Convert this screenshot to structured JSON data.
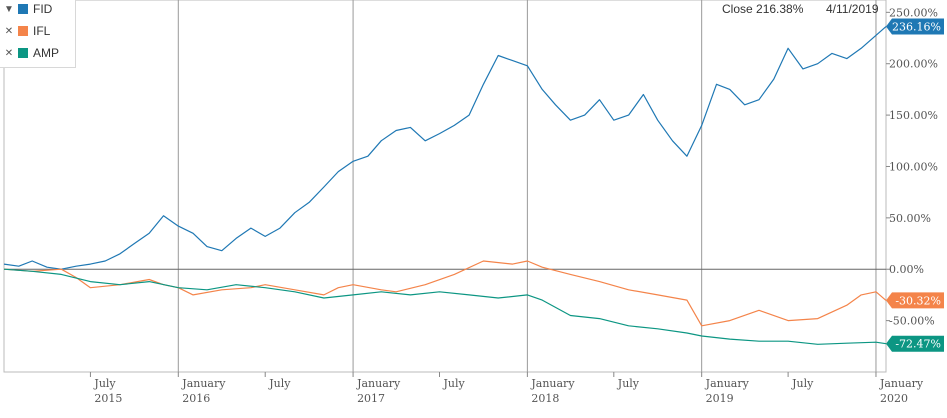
{
  "readout": {
    "close_label": "Close 216.38%",
    "date_label": "4/11/2019"
  },
  "colors": {
    "FID": "#1f78b4",
    "IFL": "#f4844a",
    "AMP": "#0c9683",
    "grid": "#999999",
    "zero": "#666666"
  },
  "chart_data": {
    "type": "line",
    "title": "",
    "xlabel": "",
    "ylabel": "",
    "x_range": [
      "2015-01-01",
      "2020-01-22"
    ],
    "ylim": [
      -100,
      262
    ],
    "y_ticks": [
      250,
      200,
      150,
      100,
      50,
      0,
      -50
    ],
    "y_tick_labels": [
      "250.00%",
      "200.00%",
      "150.00%",
      "100.00%",
      "50.00%",
      "0.00%",
      "-50.00%"
    ],
    "x_ticks": [
      {
        "date": "2015-07-01",
        "month": "July",
        "year": "2015"
      },
      {
        "date": "2016-01-01",
        "month": "January",
        "year": "2016"
      },
      {
        "date": "2016-07-01",
        "month": "July",
        "year": ""
      },
      {
        "date": "2017-01-01",
        "month": "January",
        "year": "2017"
      },
      {
        "date": "2017-07-01",
        "month": "July",
        "year": ""
      },
      {
        "date": "2018-01-01",
        "month": "January",
        "year": "2018"
      },
      {
        "date": "2018-07-01",
        "month": "July",
        "year": ""
      },
      {
        "date": "2019-01-01",
        "month": "January",
        "year": "2019"
      },
      {
        "date": "2019-07-01",
        "month": "July",
        "year": ""
      },
      {
        "date": "2020-01-01",
        "month": "January",
        "year": "2020"
      }
    ],
    "gridlines_x": [
      "2016-01-01",
      "2017-01-01",
      "2018-01-01",
      "2019-01-01",
      "2020-01-01"
    ],
    "legend_position": "top-left",
    "series": [
      {
        "name": "FID",
        "last_label": "236.16%",
        "points": [
          [
            "2015-01-01",
            5
          ],
          [
            "2015-02-01",
            3
          ],
          [
            "2015-03-01",
            8
          ],
          [
            "2015-04-01",
            2
          ],
          [
            "2015-05-01",
            0
          ],
          [
            "2015-06-01",
            3
          ],
          [
            "2015-07-01",
            5
          ],
          [
            "2015-08-01",
            8
          ],
          [
            "2015-09-01",
            15
          ],
          [
            "2015-10-01",
            25
          ],
          [
            "2015-11-01",
            35
          ],
          [
            "2015-12-01",
            52
          ],
          [
            "2016-01-01",
            42
          ],
          [
            "2016-02-01",
            35
          ],
          [
            "2016-03-01",
            22
          ],
          [
            "2016-04-01",
            18
          ],
          [
            "2016-05-01",
            30
          ],
          [
            "2016-06-01",
            40
          ],
          [
            "2016-07-01",
            32
          ],
          [
            "2016-08-01",
            40
          ],
          [
            "2016-09-01",
            55
          ],
          [
            "2016-10-01",
            65
          ],
          [
            "2016-11-01",
            80
          ],
          [
            "2016-12-01",
            95
          ],
          [
            "2017-01-01",
            105
          ],
          [
            "2017-02-01",
            110
          ],
          [
            "2017-03-01",
            125
          ],
          [
            "2017-04-01",
            135
          ],
          [
            "2017-05-01",
            138
          ],
          [
            "2017-06-01",
            125
          ],
          [
            "2017-07-01",
            132
          ],
          [
            "2017-08-01",
            140
          ],
          [
            "2017-09-01",
            150
          ],
          [
            "2017-10-01",
            180
          ],
          [
            "2017-11-01",
            208
          ],
          [
            "2017-12-01",
            203
          ],
          [
            "2018-01-01",
            198
          ],
          [
            "2018-02-01",
            175
          ],
          [
            "2018-03-01",
            160
          ],
          [
            "2018-04-01",
            145
          ],
          [
            "2018-05-01",
            150
          ],
          [
            "2018-06-01",
            165
          ],
          [
            "2018-07-01",
            145
          ],
          [
            "2018-08-01",
            150
          ],
          [
            "2018-09-01",
            170
          ],
          [
            "2018-10-01",
            145
          ],
          [
            "2018-11-01",
            125
          ],
          [
            "2018-12-01",
            110
          ],
          [
            "2019-01-01",
            140
          ],
          [
            "2019-02-01",
            180
          ],
          [
            "2019-03-01",
            175
          ],
          [
            "2019-04-01",
            160
          ],
          [
            "2019-05-01",
            165
          ],
          [
            "2019-06-01",
            185
          ],
          [
            "2019-07-01",
            215
          ],
          [
            "2019-08-01",
            195
          ],
          [
            "2019-09-01",
            200
          ],
          [
            "2019-10-01",
            210
          ],
          [
            "2019-11-01",
            205
          ],
          [
            "2019-12-01",
            215
          ],
          [
            "2020-01-22",
            236.16
          ]
        ]
      },
      {
        "name": "IFL",
        "last_label": "-30.32%",
        "points": [
          [
            "2015-01-01",
            0
          ],
          [
            "2015-03-01",
            -2
          ],
          [
            "2015-05-01",
            0
          ],
          [
            "2015-06-01",
            -8
          ],
          [
            "2015-07-01",
            -18
          ],
          [
            "2015-09-01",
            -15
          ],
          [
            "2015-11-01",
            -10
          ],
          [
            "2015-12-01",
            -15
          ],
          [
            "2016-01-01",
            -18
          ],
          [
            "2016-02-01",
            -25
          ],
          [
            "2016-04-01",
            -20
          ],
          [
            "2016-06-01",
            -18
          ],
          [
            "2016-07-01",
            -15
          ],
          [
            "2016-09-01",
            -20
          ],
          [
            "2016-11-01",
            -25
          ],
          [
            "2016-12-01",
            -18
          ],
          [
            "2017-01-01",
            -15
          ],
          [
            "2017-03-01",
            -20
          ],
          [
            "2017-04-01",
            -22
          ],
          [
            "2017-06-01",
            -15
          ],
          [
            "2017-08-01",
            -5
          ],
          [
            "2017-10-01",
            8
          ],
          [
            "2017-12-01",
            5
          ],
          [
            "2018-01-01",
            8
          ],
          [
            "2018-02-01",
            2
          ],
          [
            "2018-04-01",
            -5
          ],
          [
            "2018-06-01",
            -12
          ],
          [
            "2018-08-01",
            -20
          ],
          [
            "2018-10-01",
            -25
          ],
          [
            "2018-12-01",
            -30
          ],
          [
            "2019-01-01",
            -55
          ],
          [
            "2019-03-01",
            -50
          ],
          [
            "2019-05-01",
            -40
          ],
          [
            "2019-07-01",
            -50
          ],
          [
            "2019-09-01",
            -48
          ],
          [
            "2019-11-01",
            -35
          ],
          [
            "2019-12-01",
            -25
          ],
          [
            "2020-01-01",
            -22
          ],
          [
            "2020-01-22",
            -30.32
          ]
        ]
      },
      {
        "name": "AMP",
        "last_label": "-72.47%",
        "points": [
          [
            "2015-01-01",
            0
          ],
          [
            "2015-03-01",
            -2
          ],
          [
            "2015-05-01",
            -5
          ],
          [
            "2015-07-01",
            -12
          ],
          [
            "2015-09-01",
            -15
          ],
          [
            "2015-11-01",
            -12
          ],
          [
            "2016-01-01",
            -18
          ],
          [
            "2016-03-01",
            -20
          ],
          [
            "2016-05-01",
            -15
          ],
          [
            "2016-07-01",
            -18
          ],
          [
            "2016-09-01",
            -22
          ],
          [
            "2016-11-01",
            -28
          ],
          [
            "2017-01-01",
            -25
          ],
          [
            "2017-03-01",
            -22
          ],
          [
            "2017-05-01",
            -25
          ],
          [
            "2017-07-01",
            -22
          ],
          [
            "2017-09-01",
            -25
          ],
          [
            "2017-11-01",
            -28
          ],
          [
            "2018-01-01",
            -25
          ],
          [
            "2018-02-01",
            -30
          ],
          [
            "2018-04-01",
            -45
          ],
          [
            "2018-06-01",
            -48
          ],
          [
            "2018-08-01",
            -55
          ],
          [
            "2018-10-01",
            -58
          ],
          [
            "2018-12-01",
            -62
          ],
          [
            "2019-01-01",
            -65
          ],
          [
            "2019-03-01",
            -68
          ],
          [
            "2019-05-01",
            -70
          ],
          [
            "2019-07-01",
            -70
          ],
          [
            "2019-09-01",
            -73
          ],
          [
            "2019-11-01",
            -72
          ],
          [
            "2020-01-01",
            -71
          ],
          [
            "2020-01-22",
            -72.47
          ]
        ]
      }
    ]
  }
}
